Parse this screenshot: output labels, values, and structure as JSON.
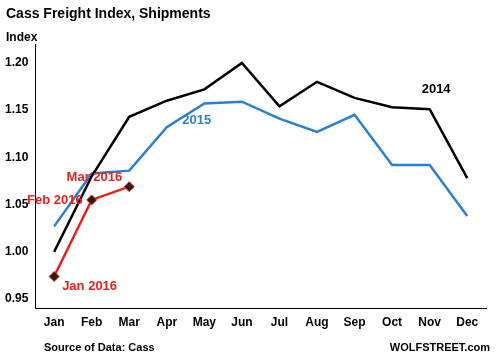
{
  "chart_data": {
    "type": "line",
    "title": "Cass Freight Index, Shipments",
    "y_label": "Index",
    "source": "Source of Data: Cass",
    "watermark": "WOLFSTREET.com",
    "categories": [
      "Jan",
      "Feb",
      "Mar",
      "Apr",
      "May",
      "Jun",
      "Jul",
      "Aug",
      "Sep",
      "Oct",
      "Nov",
      "Dec"
    ],
    "series": [
      {
        "name": "2014",
        "color": "#000000",
        "marker": "none",
        "line_style": "solid",
        "values": [
          1.0,
          1.08,
          1.143,
          1.16,
          1.172,
          1.2,
          1.154,
          1.18,
          1.163,
          1.153,
          1.151,
          1.078
        ]
      },
      {
        "name": "2015",
        "color": "#2a7fcf",
        "marker": "none",
        "line_style": "solid",
        "values": [
          1.027,
          1.083,
          1.086,
          1.132,
          1.157,
          1.159,
          1.141,
          1.127,
          1.145,
          1.092,
          1.092,
          1.038
        ]
      },
      {
        "color": "#e8221b",
        "marker": "diamond",
        "line_style": "solid",
        "point_labels": [
          "Jan 2016",
          "Feb 2016",
          "Mar 2016",
          null,
          null,
          null,
          null,
          null,
          null,
          null,
          null,
          null
        ],
        "values": [
          0.974,
          1.055,
          1.069,
          null,
          null,
          null,
          null,
          null,
          null,
          null,
          null,
          null
        ]
      }
    ],
    "ylim": [
      0.94,
      1.22
    ],
    "yticks": [
      0.95,
      {
        "value": 1,
        "label": "1.00"
      },
      1.05,
      {
        "value": 1.1,
        "label": "1.10"
      },
      1.15,
      {
        "value": 1.2,
        "label": "1.20"
      }
    ],
    "grid": false
  }
}
